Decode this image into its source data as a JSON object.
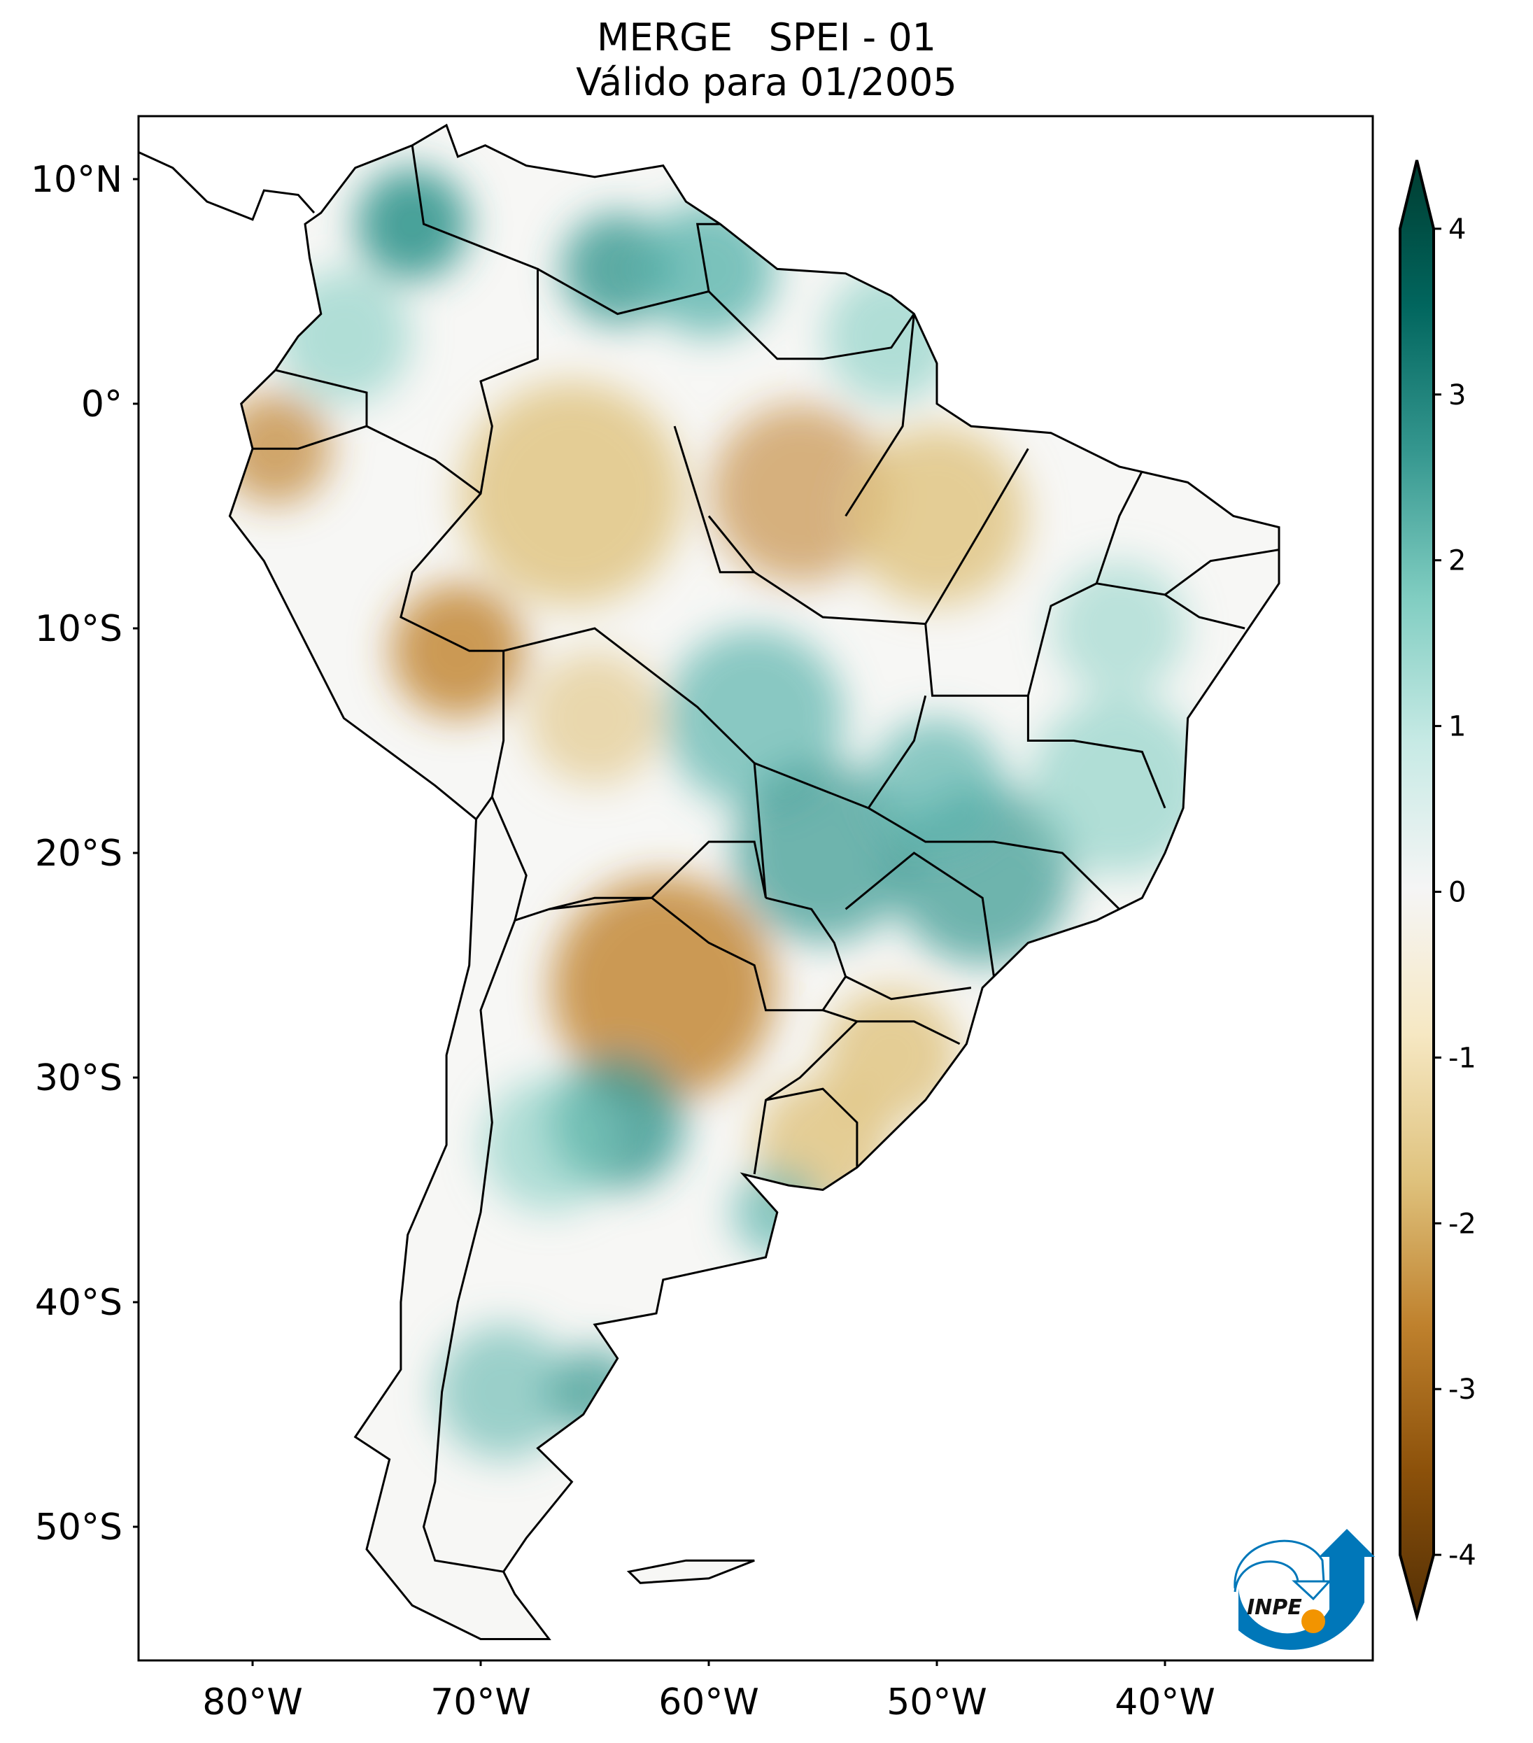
{
  "title": {
    "line1": "MERGE   SPEI - 01",
    "line2": "Válido para 01/2005"
  },
  "map": {
    "lat_ticks": [
      {
        "value": 10,
        "label": "10°N"
      },
      {
        "value": 0,
        "label": "0°"
      },
      {
        "value": -10,
        "label": "10°S"
      },
      {
        "value": -20,
        "label": "20°S"
      },
      {
        "value": -30,
        "label": "30°S"
      },
      {
        "value": -40,
        "label": "40°S"
      },
      {
        "value": -50,
        "label": "50°S"
      }
    ],
    "lon_ticks": [
      {
        "value": -80,
        "label": "80°W"
      },
      {
        "value": -70,
        "label": "70°W"
      },
      {
        "value": -60,
        "label": "60°W"
      },
      {
        "value": -50,
        "label": "50°W"
      },
      {
        "value": -40,
        "label": "40°W"
      }
    ],
    "extent": {
      "lon": [
        -85,
        -31
      ],
      "lat": [
        -56,
        13
      ]
    }
  },
  "colorbar": {
    "ticks": [
      {
        "value": 4,
        "label": "4"
      },
      {
        "value": 3,
        "label": "3"
      },
      {
        "value": 2,
        "label": "2"
      },
      {
        "value": 1,
        "label": "1"
      },
      {
        "value": 0,
        "label": "0"
      },
      {
        "value": -1,
        "label": "-1"
      },
      {
        "value": -2,
        "label": "-2"
      },
      {
        "value": -3,
        "label": "-3"
      },
      {
        "value": -4,
        "label": "-4"
      }
    ],
    "range": [
      -4,
      4
    ],
    "colors": [
      "#543005",
      "#8c510a",
      "#bf812d",
      "#dfc27d",
      "#f6e8c3",
      "#f5f5f5",
      "#c7eae5",
      "#80cdc1",
      "#35978f",
      "#01665e",
      "#003c30"
    ]
  },
  "logo": {
    "text": "INPE",
    "blue": "#0077b9",
    "orange": "#f29400"
  }
}
